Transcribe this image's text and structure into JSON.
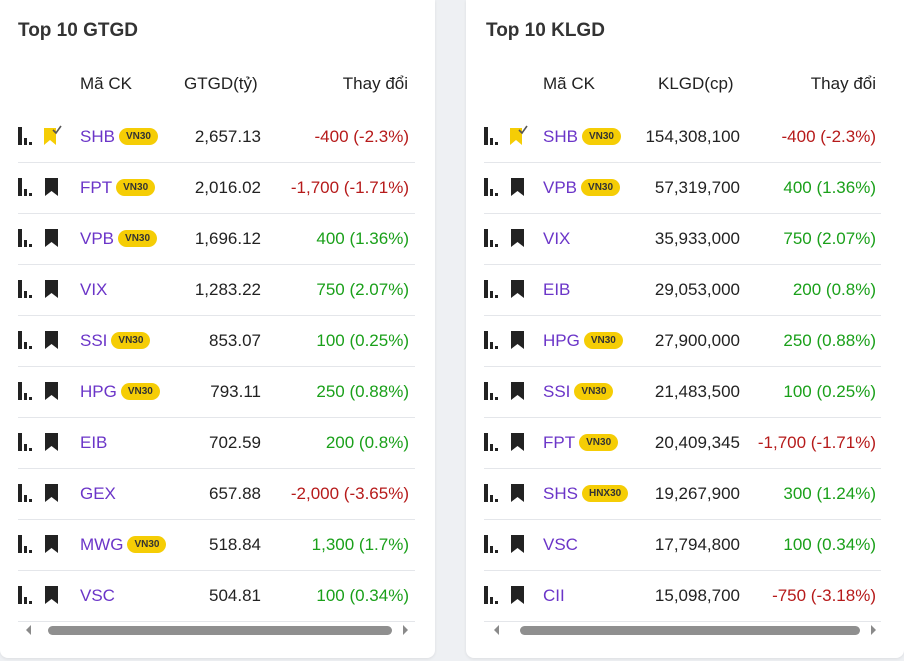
{
  "colors": {
    "up": "#1aa01a",
    "down": "#b61a1a",
    "symbol": "#6b35c8",
    "badge": "#f5cd05"
  },
  "left": {
    "title": "Top 10 GTGD",
    "headers": {
      "symbol": "Mã CK",
      "value": "GTGD(tỷ)",
      "change": "Thay đổi"
    },
    "rows": [
      {
        "symbol": "SHB",
        "badge": "VN30",
        "value": "2,657.13",
        "change": "-400 (-2.3%)",
        "dir": "down",
        "watched": true
      },
      {
        "symbol": "FPT",
        "badge": "VN30",
        "value": "2,016.02",
        "change": "-1,700 (-1.71%)",
        "dir": "down",
        "watched": false
      },
      {
        "symbol": "VPB",
        "badge": "VN30",
        "value": "1,696.12",
        "change": "400 (1.36%)",
        "dir": "up",
        "watched": false
      },
      {
        "symbol": "VIX",
        "badge": "",
        "value": "1,283.22",
        "change": "750 (2.07%)",
        "dir": "up",
        "watched": false
      },
      {
        "symbol": "SSI",
        "badge": "VN30",
        "value": "853.07",
        "change": "100 (0.25%)",
        "dir": "up",
        "watched": false
      },
      {
        "symbol": "HPG",
        "badge": "VN30",
        "value": "793.11",
        "change": "250 (0.88%)",
        "dir": "up",
        "watched": false
      },
      {
        "symbol": "EIB",
        "badge": "",
        "value": "702.59",
        "change": "200 (0.8%)",
        "dir": "up",
        "watched": false
      },
      {
        "symbol": "GEX",
        "badge": "",
        "value": "657.88",
        "change": "-2,000 (-3.65%)",
        "dir": "down",
        "watched": false
      },
      {
        "symbol": "MWG",
        "badge": "VN30",
        "value": "518.84",
        "change": "1,300 (1.7%)",
        "dir": "up",
        "watched": false
      },
      {
        "symbol": "VSC",
        "badge": "",
        "value": "504.81",
        "change": "100 (0.34%)",
        "dir": "up",
        "watched": false
      }
    ]
  },
  "right": {
    "title": "Top 10 KLGD",
    "headers": {
      "symbol": "Mã CK",
      "value": "KLGD(cp)",
      "change": "Thay đổi"
    },
    "rows": [
      {
        "symbol": "SHB",
        "badge": "VN30",
        "value": "154,308,100",
        "change": "-400 (-2.3%)",
        "dir": "down",
        "watched": true
      },
      {
        "symbol": "VPB",
        "badge": "VN30",
        "value": "57,319,700",
        "change": "400 (1.36%)",
        "dir": "up",
        "watched": false
      },
      {
        "symbol": "VIX",
        "badge": "",
        "value": "35,933,000",
        "change": "750 (2.07%)",
        "dir": "up",
        "watched": false
      },
      {
        "symbol": "EIB",
        "badge": "",
        "value": "29,053,000",
        "change": "200 (0.8%)",
        "dir": "up",
        "watched": false
      },
      {
        "symbol": "HPG",
        "badge": "VN30",
        "value": "27,900,000",
        "change": "250 (0.88%)",
        "dir": "up",
        "watched": false
      },
      {
        "symbol": "SSI",
        "badge": "VN30",
        "value": "21,483,500",
        "change": "100 (0.25%)",
        "dir": "up",
        "watched": false
      },
      {
        "symbol": "FPT",
        "badge": "VN30",
        "value": "20,409,345",
        "change": "-1,700 (-1.71%)",
        "dir": "down",
        "watched": false
      },
      {
        "symbol": "SHS",
        "badge": "HNX30",
        "value": "19,267,900",
        "change": "300 (1.24%)",
        "dir": "up",
        "watched": false
      },
      {
        "symbol": "VSC",
        "badge": "",
        "value": "17,794,800",
        "change": "100 (0.34%)",
        "dir": "up",
        "watched": false
      },
      {
        "symbol": "CII",
        "badge": "",
        "value": "15,098,700",
        "change": "-750 (-3.18%)",
        "dir": "down",
        "watched": false
      }
    ]
  }
}
